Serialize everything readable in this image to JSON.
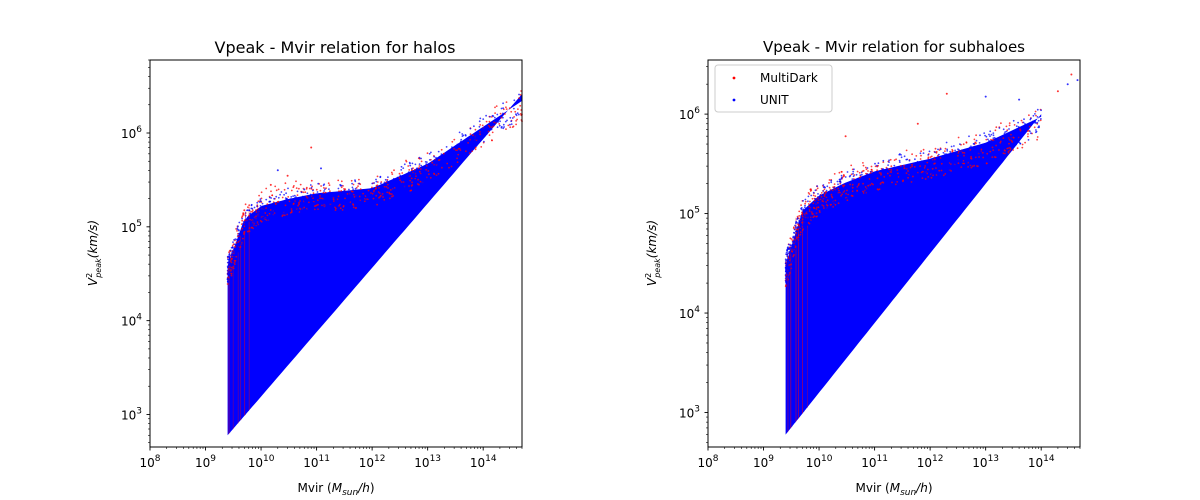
{
  "chart_data": [
    {
      "type": "scatter",
      "title": "Vpeak - Mvir relation for halos",
      "xlabel": "Mvir (M_sun/h)",
      "ylabel": "V^2_peak (km/s)",
      "xscale": "log",
      "yscale": "log",
      "xlim": [
        100000000,
        500000000000000
      ],
      "ylim": [
        450,
        6000000
      ],
      "x_ticks": [
        {
          "value": 100000000,
          "base": "10",
          "exp": "8"
        },
        {
          "value": 1000000000,
          "base": "10",
          "exp": "9"
        },
        {
          "value": 10000000000,
          "base": "10",
          "exp": "10"
        },
        {
          "value": 100000000000,
          "base": "10",
          "exp": "11"
        },
        {
          "value": 1000000000000,
          "base": "10",
          "exp": "12"
        },
        {
          "value": 10000000000000,
          "base": "10",
          "exp": "13"
        },
        {
          "value": 100000000000000,
          "base": "10",
          "exp": "14"
        }
      ],
      "y_ticks": [
        {
          "value": 1000,
          "base": "10",
          "exp": "3"
        },
        {
          "value": 10000,
          "base": "10",
          "exp": "4"
        },
        {
          "value": 100000,
          "base": "10",
          "exp": "5"
        },
        {
          "value": 1000000,
          "base": "10",
          "exp": "6"
        }
      ],
      "grid": false,
      "legend": "none",
      "series": [
        {
          "key": "multidark",
          "color": "#ff0000",
          "lower_edge": [
            [
              2500000000.0,
              600
            ],
            [
              500000000000000.0,
              2600000
            ]
          ],
          "upper_envelope": [
            [
              2500000000.0,
              50000
            ],
            [
              5000000000.0,
              180000
            ],
            [
              10000000000.0,
              250000
            ],
            [
              30000000000.0,
              300000
            ],
            [
              100000000000.0,
              320000
            ],
            [
              1000000000000.0,
              360000
            ],
            [
              10000000000000.0,
              650000
            ],
            [
              500000000000000.0,
              3000000
            ]
          ],
          "outliers": [
            [
              80000000000.0,
              700000
            ],
            [
              15000000000.0,
              280000
            ],
            [
              30000000000.0,
              350000
            ],
            [
              5000000000.0,
              150000
            ]
          ]
        },
        {
          "key": "unit",
          "color": "#0000ff",
          "lower_edge": [
            [
              2500000000.0,
              600
            ],
            [
              500000000000000.0,
              2600000
            ]
          ],
          "upper_envelope": [
            [
              2500000000.0,
              50000
            ],
            [
              5000000000.0,
              160000
            ],
            [
              10000000000.0,
              220000
            ],
            [
              30000000000.0,
              260000
            ],
            [
              100000000000.0,
              300000
            ],
            [
              1000000000000.0,
              340000
            ],
            [
              10000000000000.0,
              620000
            ],
            [
              500000000000000.0,
              2900000
            ]
          ],
          "outliers": [
            [
              20000000000.0,
              400000
            ],
            [
              60000000000.0,
              250000
            ],
            [
              120000000000.0,
              420000
            ]
          ]
        }
      ]
    },
    {
      "type": "scatter",
      "title": "Vpeak - Mvir relation for subhaloes",
      "xlabel": "Mvir (M_sun/h)",
      "ylabel": "V^2_peak (km/s)",
      "xscale": "log",
      "yscale": "log",
      "xlim": [
        100000000,
        500000000000000
      ],
      "ylim": [
        450,
        3500000
      ],
      "x_ticks": [
        {
          "value": 100000000,
          "base": "10",
          "exp": "8"
        },
        {
          "value": 1000000000,
          "base": "10",
          "exp": "9"
        },
        {
          "value": 10000000000,
          "base": "10",
          "exp": "10"
        },
        {
          "value": 100000000000,
          "base": "10",
          "exp": "11"
        },
        {
          "value": 1000000000000,
          "base": "10",
          "exp": "12"
        },
        {
          "value": 10000000000000,
          "base": "10",
          "exp": "13"
        },
        {
          "value": 100000000000000,
          "base": "10",
          "exp": "14"
        }
      ],
      "y_ticks": [
        {
          "value": 1000,
          "base": "10",
          "exp": "3"
        },
        {
          "value": 10000,
          "base": "10",
          "exp": "4"
        },
        {
          "value": 100000,
          "base": "10",
          "exp": "5"
        },
        {
          "value": 1000000,
          "base": "10",
          "exp": "6"
        }
      ],
      "grid": false,
      "legend": "top-left",
      "series": [
        {
          "name": "MultiDark",
          "key": "multidark",
          "color": "#ff0000",
          "lower_edge": [
            [
              2500000000.0,
              600
            ],
            [
              100000000000000.0,
              1000000
            ]
          ],
          "upper_envelope": [
            [
              2500000000.0,
              40000
            ],
            [
              5000000000.0,
              150000
            ],
            [
              10000000000.0,
              220000
            ],
            [
              30000000000.0,
              300000
            ],
            [
              100000000000.0,
              380000
            ],
            [
              1000000000000.0,
              500000
            ],
            [
              10000000000000.0,
              700000
            ],
            [
              120000000000000.0,
              1300000
            ]
          ],
          "outliers": [
            [
              30000000000.0,
              600000
            ],
            [
              2000000000000.0,
              1600000
            ],
            [
              200000000000000.0,
              1700000
            ],
            [
              350000000000000.0,
              2500000
            ],
            [
              600000000000.0,
              800000
            ]
          ]
        },
        {
          "name": "UNIT",
          "key": "unit",
          "color": "#0000ff",
          "lower_edge": [
            [
              2500000000.0,
              600
            ],
            [
              100000000000000.0,
              1000000
            ]
          ],
          "upper_envelope": [
            [
              2500000000.0,
              40000
            ],
            [
              5000000000.0,
              140000
            ],
            [
              10000000000.0,
              200000
            ],
            [
              30000000000.0,
              270000
            ],
            [
              100000000000.0,
              350000
            ],
            [
              1000000000000.0,
              470000
            ],
            [
              10000000000000.0,
              680000
            ],
            [
              120000000000000.0,
              1300000
            ]
          ],
          "outliers": [
            [
              10000000000000.0,
              1500000
            ],
            [
              40000000000000.0,
              1400000
            ],
            [
              300000000000000.0,
              2000000
            ],
            [
              450000000000000.0,
              2200000
            ]
          ]
        }
      ]
    }
  ]
}
